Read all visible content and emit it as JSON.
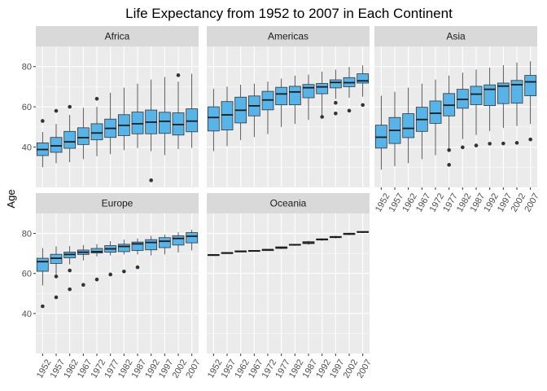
{
  "chart_data": {
    "type": "boxplot",
    "title": "Life Expectancy from 1952 to 2007 in Each Continent",
    "xlabel": "",
    "ylabel": "Age",
    "categories": [
      "1952",
      "1957",
      "1962",
      "1967",
      "1972",
      "1977",
      "1982",
      "1987",
      "1992",
      "1997",
      "2002",
      "2007"
    ],
    "ylim": [
      20,
      90
    ],
    "yticks": [
      40,
      60,
      80
    ],
    "grid": true,
    "facet_layout": "3 columns, 2 rows",
    "colors": {
      "box_fill": "#56B4E9",
      "panel_bg": "#EBEBEB",
      "strip_bg": "#D9D9D9",
      "grid": "#FFFFFF",
      "line": "#333333"
    },
    "panels": [
      {
        "name": "Africa",
        "boxes": [
          {
            "min": 30,
            "q1": 35.8,
            "median": 38.8,
            "q3": 42.1,
            "max": 47.5,
            "outliers": [
              53
            ]
          },
          {
            "min": 32,
            "q1": 37.4,
            "median": 40.6,
            "q3": 44.8,
            "max": 51.5,
            "outliers": [
              58
            ]
          },
          {
            "min": 32.5,
            "q1": 39.4,
            "median": 42.6,
            "q3": 47.8,
            "max": 56,
            "outliers": [
              60
            ]
          },
          {
            "min": 34,
            "q1": 41.3,
            "median": 44.7,
            "q3": 49.6,
            "max": 59.5,
            "outliers": []
          },
          {
            "min": 35.5,
            "q1": 43.6,
            "median": 47,
            "q3": 51.6,
            "max": 60,
            "outliers": [
              64
            ]
          },
          {
            "min": 36.5,
            "q1": 44.8,
            "median": 49.3,
            "q3": 53.9,
            "max": 67,
            "outliers": []
          },
          {
            "min": 38.5,
            "q1": 45.7,
            "median": 50.8,
            "q3": 56.1,
            "max": 69.5,
            "outliers": []
          },
          {
            "min": 39.5,
            "q1": 46.6,
            "median": 51.6,
            "q3": 57.4,
            "max": 71.5,
            "outliers": []
          },
          {
            "min": 38,
            "q1": 46.6,
            "median": 52.4,
            "q3": 58.4,
            "max": 73.5,
            "outliers": [
              23.5
            ]
          },
          {
            "min": 36,
            "q1": 46.8,
            "median": 52.8,
            "q3": 57.3,
            "max": 74.8,
            "outliers": []
          },
          {
            "min": 39,
            "q1": 46,
            "median": 51.2,
            "q3": 57,
            "max": 72.5,
            "outliers": [
              75.7
            ]
          },
          {
            "min": 39.6,
            "q1": 47.6,
            "median": 52.9,
            "q3": 59,
            "max": 76.4,
            "outliers": []
          }
        ]
      },
      {
        "name": "Americas",
        "boxes": [
          {
            "min": 38,
            "q1": 48,
            "median": 54.7,
            "q3": 60,
            "max": 69,
            "outliers": []
          },
          {
            "min": 40.5,
            "q1": 48.5,
            "median": 56,
            "q3": 62.6,
            "max": 70,
            "outliers": []
          },
          {
            "min": 43.5,
            "q1": 52,
            "median": 58.3,
            "q3": 64.8,
            "max": 71,
            "outliers": []
          },
          {
            "min": 45,
            "q1": 55.5,
            "median": 60.5,
            "q3": 65.4,
            "max": 71.5,
            "outliers": []
          },
          {
            "min": 46.5,
            "q1": 58.5,
            "median": 63.4,
            "q3": 67.7,
            "max": 72.5,
            "outliers": []
          },
          {
            "min": 50,
            "q1": 61,
            "median": 66.4,
            "q3": 69.7,
            "max": 74,
            "outliers": []
          },
          {
            "min": 51.5,
            "q1": 61,
            "median": 67.4,
            "q3": 70.2,
            "max": 75.5,
            "outliers": []
          },
          {
            "min": 53.5,
            "q1": 64.5,
            "median": 69.5,
            "q3": 71.1,
            "max": 76,
            "outliers": []
          },
          {
            "min": 55,
            "q1": 66.5,
            "median": 69.9,
            "q3": 71.6,
            "max": 77.5,
            "outliers": [
              55
            ]
          },
          {
            "min": 64,
            "q1": 69.4,
            "median": 72.1,
            "q3": 73.4,
            "max": 78.5,
            "outliers": [
              56.7,
              62
            ]
          },
          {
            "min": 64.5,
            "q1": 70,
            "median": 72,
            "q3": 74.5,
            "max": 79.8,
            "outliers": [
              58.1
            ]
          },
          {
            "min": 65,
            "q1": 71.8,
            "median": 72.9,
            "q3": 76.4,
            "max": 80.6,
            "outliers": [
              60.9
            ]
          }
        ]
      },
      {
        "name": "Asia",
        "boxes": [
          {
            "min": 28.8,
            "q1": 39.5,
            "median": 44.9,
            "q3": 50.9,
            "max": 65.5,
            "outliers": []
          },
          {
            "min": 30.5,
            "q1": 41.8,
            "median": 48.3,
            "q3": 54.7,
            "max": 67.5,
            "outliers": []
          },
          {
            "min": 32,
            "q1": 44.7,
            "median": 49.3,
            "q3": 56.6,
            "max": 69.5,
            "outliers": []
          },
          {
            "min": 34,
            "q1": 47.8,
            "median": 53.7,
            "q3": 59.8,
            "max": 71.5,
            "outliers": []
          },
          {
            "min": 36,
            "q1": 51.8,
            "median": 56.8,
            "q3": 62.9,
            "max": 73.5,
            "outliers": []
          },
          {
            "min": 38.5,
            "q1": 55.5,
            "median": 60.8,
            "q3": 66.6,
            "max": 75.5,
            "outliers": [
              31.2,
              38.5
            ]
          },
          {
            "min": 44,
            "q1": 59.3,
            "median": 63.7,
            "q3": 68.7,
            "max": 77,
            "outliers": [
              39.9
            ]
          },
          {
            "min": 46,
            "q1": 61.1,
            "median": 66.3,
            "q3": 70.2,
            "max": 78.5,
            "outliers": [
              40.8
            ]
          },
          {
            "min": 48,
            "q1": 60.6,
            "median": 68.7,
            "q3": 70.9,
            "max": 79.5,
            "outliers": [
              41.7
            ]
          },
          {
            "min": 49.5,
            "q1": 61.6,
            "median": 70.3,
            "q3": 71.8,
            "max": 80.7,
            "outliers": [
              41.8
            ]
          },
          {
            "min": 50.5,
            "q1": 61.8,
            "median": 71.0,
            "q3": 73.1,
            "max": 82,
            "outliers": [
              42.1
            ]
          },
          {
            "min": 51.5,
            "q1": 65.5,
            "median": 72.4,
            "q3": 75.6,
            "max": 82.6,
            "outliers": [
              43.8
            ]
          }
        ]
      },
      {
        "name": "Europe",
        "boxes": [
          {
            "min": 54,
            "q1": 61.1,
            "median": 65.9,
            "q3": 67.6,
            "max": 72.7,
            "outliers": [
              43.6
            ]
          },
          {
            "min": 59.5,
            "q1": 65,
            "median": 67.6,
            "q3": 69.6,
            "max": 73.5,
            "outliers": [
              48.1,
              58.5
            ]
          },
          {
            "min": 64.5,
            "q1": 67.8,
            "median": 69.5,
            "q3": 70.7,
            "max": 73.7,
            "outliers": [
              52.1,
              61.5
            ]
          },
          {
            "min": 66.5,
            "q1": 69.5,
            "median": 70.6,
            "q3": 71.7,
            "max": 74.2,
            "outliers": [
              54.3
            ]
          },
          {
            "min": 68.5,
            "q1": 70.2,
            "median": 70.9,
            "q3": 72.5,
            "max": 74.7,
            "outliers": [
              57
            ]
          },
          {
            "min": 69,
            "q1": 70.6,
            "median": 72.3,
            "q3": 73.9,
            "max": 76.1,
            "outliers": [
              59.5
            ]
          },
          {
            "min": 69.5,
            "q1": 70.9,
            "median": 73.5,
            "q3": 74.6,
            "max": 76.9,
            "outliers": [
              61
            ]
          },
          {
            "min": 69.5,
            "q1": 71.5,
            "median": 74.8,
            "q3": 75.7,
            "max": 77.5,
            "outliers": [
              63.1
            ]
          },
          {
            "min": 69,
            "q1": 71.8,
            "median": 75.5,
            "q3": 76.9,
            "max": 78.8,
            "outliers": []
          },
          {
            "min": 69.5,
            "q1": 72.9,
            "median": 76.1,
            "q3": 77.9,
            "max": 79.4,
            "outliers": []
          },
          {
            "min": 70.5,
            "q1": 74.2,
            "median": 77.5,
            "q3": 78.8,
            "max": 80.6,
            "outliers": []
          },
          {
            "min": 71.5,
            "q1": 75.3,
            "median": 78.6,
            "q3": 80.4,
            "max": 81.8,
            "outliers": []
          }
        ]
      },
      {
        "name": "Oceania",
        "boxes": [
          {
            "min": 69.1,
            "q1": 69.2,
            "median": 69.3,
            "q3": 69.4,
            "max": 69.4,
            "outliers": []
          },
          {
            "min": 70.3,
            "q1": 70.3,
            "median": 70.3,
            "q3": 70.4,
            "max": 70.4,
            "outliers": []
          },
          {
            "min": 70.9,
            "q1": 71,
            "median": 71.1,
            "q3": 71.2,
            "max": 71.2,
            "outliers": []
          },
          {
            "min": 71.1,
            "q1": 71.2,
            "median": 71.3,
            "q3": 71.5,
            "max": 71.5,
            "outliers": []
          },
          {
            "min": 71.6,
            "q1": 71.7,
            "median": 71.9,
            "q3": 71.9,
            "max": 71.9,
            "outliers": []
          },
          {
            "min": 72.2,
            "q1": 72.5,
            "median": 72.9,
            "q3": 73.3,
            "max": 73.5,
            "outliers": []
          },
          {
            "min": 73.8,
            "q1": 74.1,
            "median": 74.3,
            "q3": 74.6,
            "max": 74.7,
            "outliers": []
          },
          {
            "min": 74.3,
            "q1": 74.9,
            "median": 75.3,
            "q3": 75.9,
            "max": 76.3,
            "outliers": []
          },
          {
            "min": 76.3,
            "q1": 76.7,
            "median": 77,
            "q3": 77.3,
            "max": 77.6,
            "outliers": []
          },
          {
            "min": 77.5,
            "q1": 77.9,
            "median": 78.2,
            "q3": 78.5,
            "max": 78.8,
            "outliers": []
          },
          {
            "min": 79.1,
            "q1": 79.5,
            "median": 79.7,
            "q3": 80.1,
            "max": 80.4,
            "outliers": []
          },
          {
            "min": 80.2,
            "q1": 80.5,
            "median": 80.7,
            "q3": 81.0,
            "max": 81.2,
            "outliers": []
          }
        ]
      }
    ]
  }
}
